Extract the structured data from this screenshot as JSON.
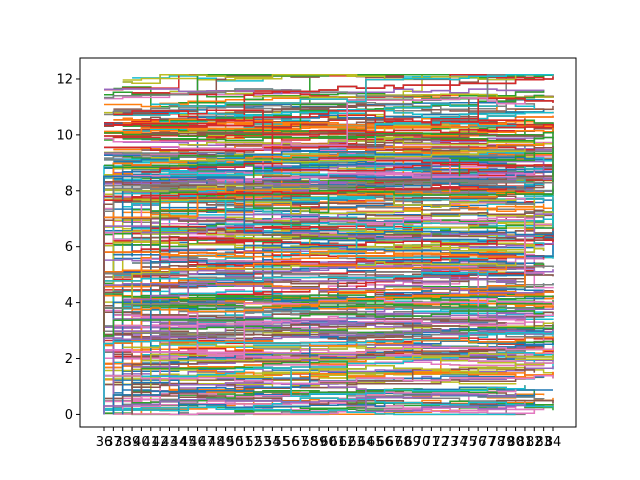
{
  "chart_data": {
    "type": "line",
    "title": "",
    "xlabel": "",
    "ylabel": "",
    "x_categories": [
      "36",
      "37",
      "38",
      "39",
      "40",
      "41",
      "42",
      "43",
      "44",
      "45",
      "46",
      "47",
      "48",
      "49",
      "50",
      "51",
      "52",
      "53",
      "54",
      "55",
      "56",
      "57",
      "58",
      "59",
      "60",
      "61",
      "62",
      "63",
      "64",
      "65",
      "66",
      "67",
      "68",
      "69",
      "70",
      "71",
      "72",
      "73",
      "74",
      "75",
      "76",
      "77",
      "78",
      "79",
      "80",
      "81",
      "82",
      "83",
      "84"
    ],
    "ylim": [
      -0.45,
      12.75
    ],
    "yticks": [
      0,
      2,
      4,
      6,
      8,
      10,
      12
    ],
    "grid": false,
    "legend": "none",
    "note_series": "Several hundred overlapping step lines spanning categories 36 to 84, with y values from 0 to about 12.1; each series is drawn as a horizontal step path.",
    "palette": [
      "#1f77b4",
      "#ff7f0e",
      "#2ca02c",
      "#d62728",
      "#9467bd",
      "#8c564b",
      "#e377c2",
      "#7f7f7f",
      "#bcbd22",
      "#17becf"
    ],
    "series_count": 640,
    "y_max_observed": 12.15,
    "y_min_observed": 0
  }
}
